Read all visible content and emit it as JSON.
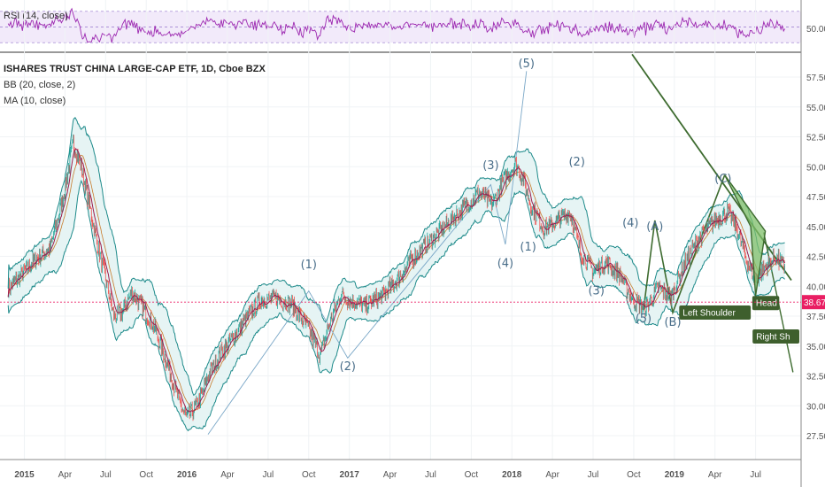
{
  "rsi_panel": {
    "title": "RSI (14, close)",
    "level_label": "50.00",
    "levels": [
      30,
      50,
      70
    ],
    "color": "#9c27b0",
    "band_color": "#e8d9f5"
  },
  "legend": {
    "main": "ISHARES TRUST CHINA LARGE-CAP ETF, 1D, Cboe BZX",
    "bb": "BB (20, close, 2)",
    "ma": "MA (10, close)"
  },
  "colors": {
    "bb_band": "#1d8a8a",
    "bb_fill": "#e6f4f4",
    "ma_line": "#9b1c4d",
    "trend_line": "#3d6b2f",
    "wave_line": "#7aa7c7",
    "pattern_fill": "#7fbf6a",
    "note_bg": "#3e5f2d",
    "price_line": "#e91e63",
    "price_tag_bg": "#e91e63"
  },
  "current_price": {
    "value": 38.67,
    "label": "38.67"
  },
  "chart_data": {
    "type": "line",
    "title": "ISHARES TRUST CHINA LARGE-CAP ETF, 1D, Cboe BZX",
    "x_ticks": [
      "2015",
      "Apr",
      "Jul",
      "Oct",
      "2016",
      "Apr",
      "Jul",
      "Oct",
      "2017",
      "Apr",
      "Jul",
      "Oct",
      "2018",
      "Apr",
      "Jul",
      "Oct",
      "2019",
      "Apr",
      "Jul"
    ],
    "y_ticks": [
      "57.50",
      "55.00",
      "52.50",
      "50.00",
      "47.50",
      "45.00",
      "42.50",
      "40.00",
      "37.50",
      "35.00",
      "32.50",
      "30.00",
      "27.50"
    ],
    "ylim": [
      25.5,
      59.5
    ],
    "series": [
      {
        "x": [
          2014.9,
          2015.0,
          2015.08,
          2015.16,
          2015.24,
          2015.3,
          2015.35,
          2015.4,
          2015.45,
          2015.5,
          2015.55,
          2015.6,
          2015.66,
          2015.72,
          2015.8,
          2015.88,
          2015.95,
          2016.0,
          2016.05,
          2016.1,
          2016.13,
          2016.2,
          2016.28,
          2016.36,
          2016.45,
          2016.55,
          2016.65,
          2016.75,
          2016.82,
          2016.88,
          2016.95,
          2017.0,
          2017.1,
          2017.2,
          2017.3,
          2017.4,
          2017.5,
          2017.6,
          2017.7,
          2017.8,
          2017.88,
          2017.95,
          2018.02,
          2018.07,
          2018.12,
          2018.2,
          2018.28,
          2018.36,
          2018.42,
          2018.5,
          2018.58,
          2018.66,
          2018.74,
          2018.82,
          2018.9,
          2018.98,
          2019.05,
          2019.15,
          2019.25,
          2019.33,
          2019.38,
          2019.45,
          2019.5,
          2019.55,
          2019.62,
          2019.68
        ],
        "values": [
          39.8,
          41.2,
          42.4,
          43.2,
          47.5,
          52.0,
          50.0,
          46.8,
          43.5,
          40.6,
          37.5,
          37.8,
          39.5,
          38.4,
          36.6,
          33.5,
          30.4,
          29.0,
          29.8,
          31.2,
          32.5,
          34.2,
          35.6,
          37.2,
          38.8,
          39.0,
          38.4,
          36.4,
          34.2,
          37.0,
          39.4,
          38.8,
          38.4,
          39.2,
          40.6,
          42.5,
          43.8,
          45.2,
          46.5,
          47.8,
          46.8,
          48.8,
          50.2,
          49.0,
          46.6,
          44.8,
          45.5,
          46.2,
          43.0,
          41.2,
          42.0,
          41.0,
          38.9,
          38.1,
          39.9,
          39.1,
          41.5,
          44.0,
          45.5,
          46.2,
          45.0,
          42.0,
          40.5,
          41.5,
          42.4,
          41.6
        ]
      }
    ],
    "wave_labels": [
      {
        "text": "(1)",
        "x": 2016.75,
        "y": 41.5
      },
      {
        "text": "(2)",
        "x": 2016.99,
        "y": 33.0
      },
      {
        "text": "(3)",
        "x": 2017.87,
        "y": 49.8
      },
      {
        "text": "(4)",
        "x": 2017.96,
        "y": 41.6
      },
      {
        "text": "(5)",
        "x": 2018.09,
        "y": 58.3
      },
      {
        "text": "(1)",
        "x": 2018.1,
        "y": 43.0
      },
      {
        "text": "(2)",
        "x": 2018.4,
        "y": 50.1
      },
      {
        "text": "(3)",
        "x": 2018.52,
        "y": 39.3
      },
      {
        "text": "(4)",
        "x": 2018.73,
        "y": 45.0
      },
      {
        "text": "(5)",
        "x": 2018.81,
        "y": 37.0
      },
      {
        "text": "(A)",
        "x": 2018.88,
        "y": 44.7
      },
      {
        "text": "(B)",
        "x": 2018.99,
        "y": 36.7
      },
      {
        "text": "(C)",
        "x": 2019.3,
        "y": 48.7
      }
    ],
    "annotations": [
      {
        "text": "Left Shoulder",
        "x": 2019.03,
        "y": 37.5
      },
      {
        "text": "Head",
        "x": 2019.48,
        "y": 38.3
      },
      {
        "text": "Right Sh",
        "x": 2019.65,
        "y": 35.5
      }
    ]
  }
}
